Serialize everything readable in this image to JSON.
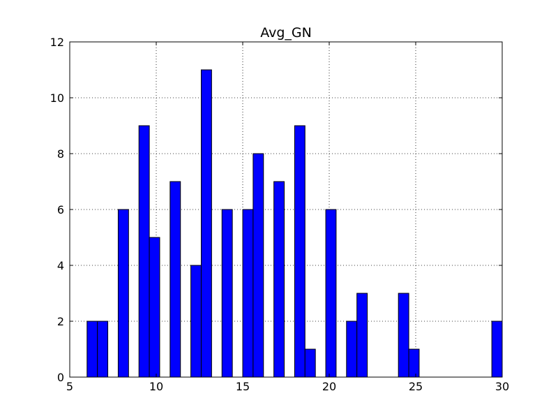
{
  "chart_data": {
    "type": "bar",
    "title": "Avg_GN",
    "xlabel": "",
    "ylabel": "",
    "xlim": [
      5,
      30
    ],
    "ylim": [
      0,
      12
    ],
    "xticks": [
      5,
      10,
      15,
      20,
      25,
      30
    ],
    "yticks": [
      0,
      2,
      4,
      6,
      8,
      10,
      12
    ],
    "grid": true,
    "bar_color": "#0000ff",
    "bins": [
      {
        "x0": 6.0,
        "x1": 6.6,
        "value": 2
      },
      {
        "x0": 6.6,
        "x1": 7.2,
        "value": 2
      },
      {
        "x0": 7.8,
        "x1": 8.4,
        "value": 6
      },
      {
        "x0": 9.0,
        "x1": 9.6,
        "value": 9
      },
      {
        "x0": 9.6,
        "x1": 10.2,
        "value": 5
      },
      {
        "x0": 10.8,
        "x1": 11.4,
        "value": 7
      },
      {
        "x0": 12.0,
        "x1": 12.6,
        "value": 4
      },
      {
        "x0": 12.6,
        "x1": 13.2,
        "value": 11
      },
      {
        "x0": 13.8,
        "x1": 14.4,
        "value": 6
      },
      {
        "x0": 15.0,
        "x1": 15.6,
        "value": 6
      },
      {
        "x0": 15.6,
        "x1": 16.2,
        "value": 8
      },
      {
        "x0": 16.8,
        "x1": 17.4,
        "value": 7
      },
      {
        "x0": 18.0,
        "x1": 18.6,
        "value": 9
      },
      {
        "x0": 18.6,
        "x1": 19.2,
        "value": 1
      },
      {
        "x0": 19.8,
        "x1": 20.4,
        "value": 6
      },
      {
        "x0": 21.0,
        "x1": 21.6,
        "value": 2
      },
      {
        "x0": 21.6,
        "x1": 22.2,
        "value": 3
      },
      {
        "x0": 24.0,
        "x1": 24.6,
        "value": 3
      },
      {
        "x0": 24.6,
        "x1": 25.2,
        "value": 1
      },
      {
        "x0": 29.4,
        "x1": 30.0,
        "value": 2
      }
    ]
  }
}
